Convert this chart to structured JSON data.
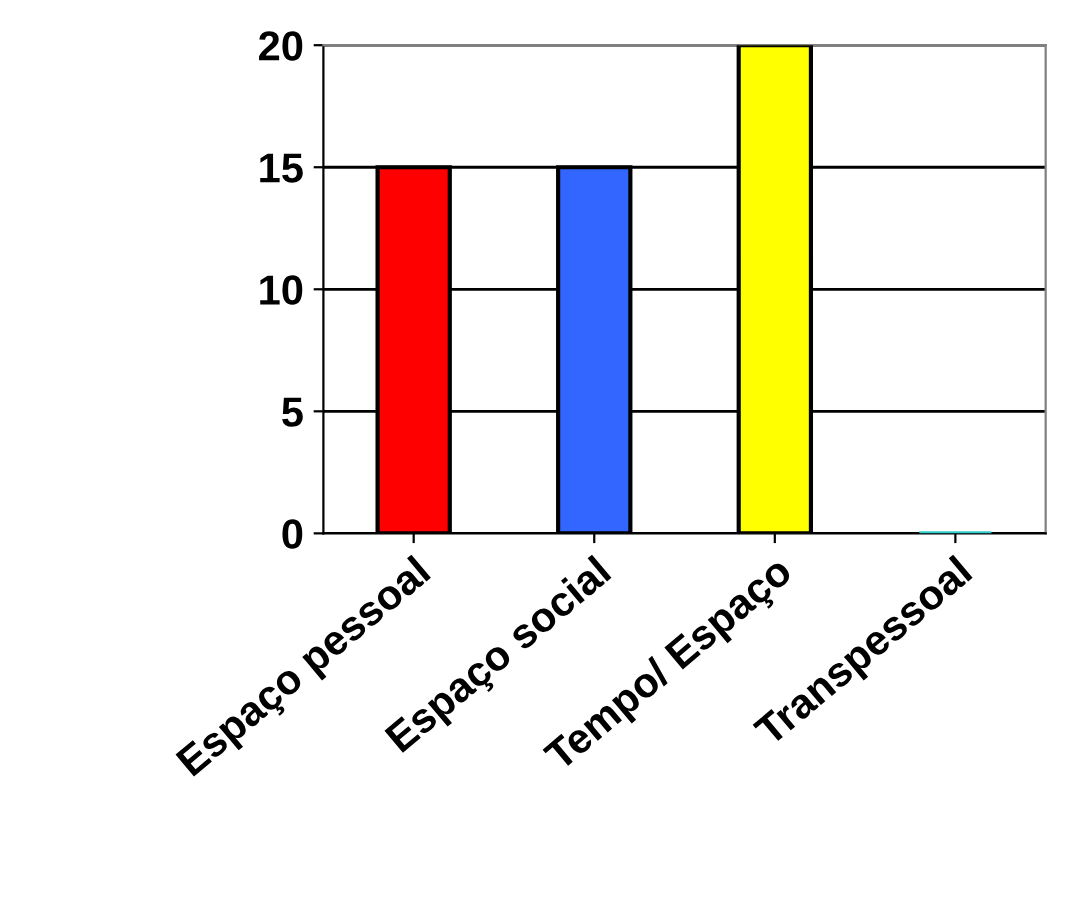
{
  "chart_data": {
    "type": "bar",
    "categories": [
      "Espaço pessoal",
      "Espaço social",
      "Tempo/ Espaço",
      "Transpessoal"
    ],
    "values": [
      15,
      15,
      20,
      0
    ],
    "colors": [
      "#ff0000",
      "#3366ff",
      "#ffff00",
      "#33cccc"
    ],
    "ylim": [
      0,
      20
    ],
    "yticks": [
      0,
      5,
      10,
      15,
      20
    ],
    "grid": "y"
  }
}
